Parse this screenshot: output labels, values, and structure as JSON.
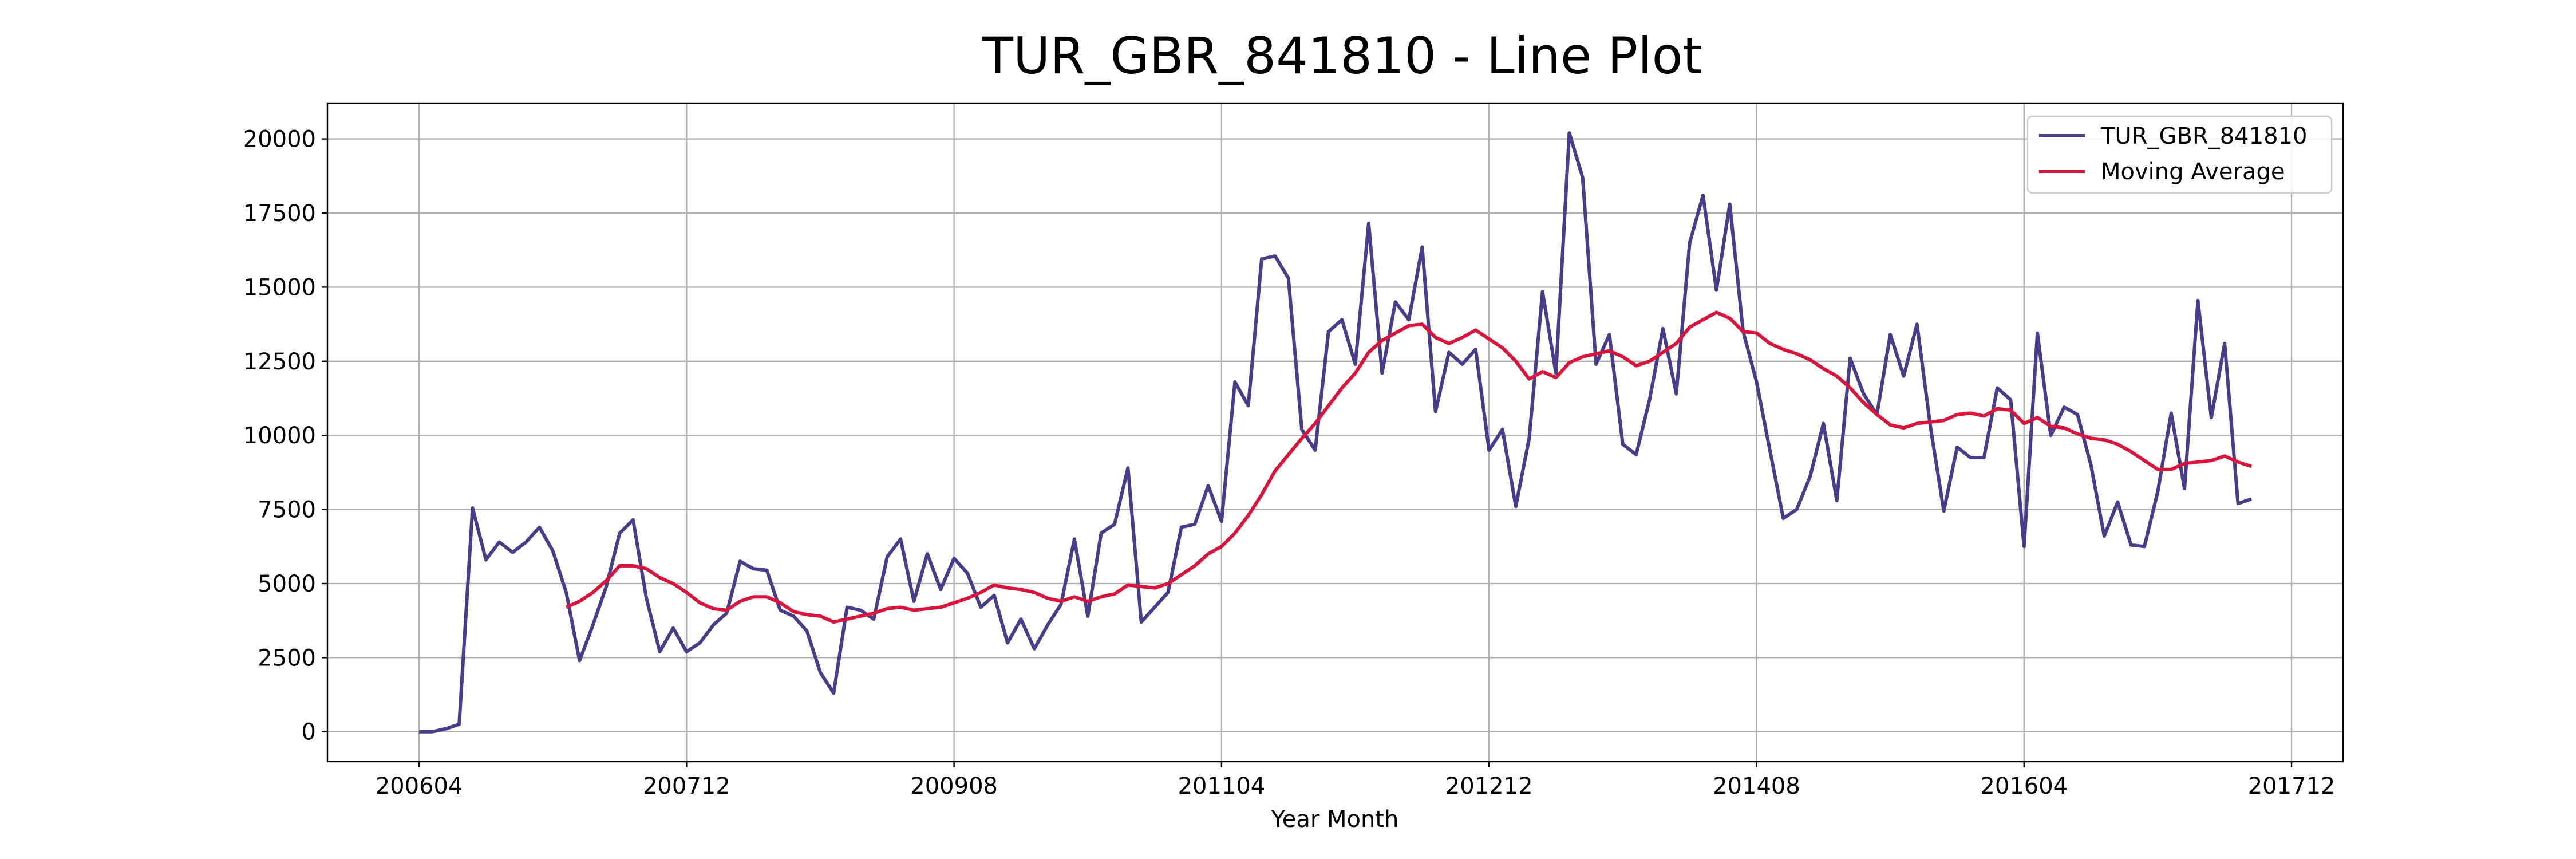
{
  "chart_data": {
    "type": "line",
    "title": "TUR_GBR_841810 - Line Plot",
    "x_label": "Year Month",
    "x": [
      0,
      1,
      2,
      3,
      4,
      5,
      6,
      7,
      8,
      9,
      10,
      11,
      12,
      13,
      14,
      15,
      16,
      17,
      18,
      19,
      20,
      21,
      22,
      23,
      24,
      25,
      26,
      27,
      28,
      29,
      30,
      31,
      32,
      33,
      34,
      35,
      36,
      37,
      38,
      39,
      40,
      41,
      42,
      43,
      44,
      45,
      46,
      47,
      48,
      49,
      50,
      51,
      52,
      53,
      54,
      55,
      56,
      57,
      58,
      59,
      60,
      61,
      62,
      63,
      64,
      65,
      66,
      67,
      68,
      69,
      70,
      71,
      72,
      73,
      74,
      75,
      76,
      77,
      78,
      79,
      80,
      81,
      82,
      83,
      84,
      85,
      86,
      87,
      88,
      89,
      90,
      91,
      92,
      93,
      94,
      95,
      96,
      97,
      98,
      99,
      100,
      101,
      102,
      103,
      104,
      105,
      106,
      107,
      108,
      109,
      110,
      111,
      112,
      113,
      114,
      115,
      116,
      117,
      118,
      119,
      120,
      121,
      122,
      123,
      124,
      125,
      126,
      127,
      128,
      129,
      130,
      131,
      132,
      133,
      134,
      135,
      136,
      137
    ],
    "series": [
      {
        "name": "TUR_GBR_841810",
        "color": "#483d8b",
        "values": [
          0,
          0,
          100,
          250,
          7550,
          5800,
          6400,
          6050,
          6400,
          6900,
          6100,
          4700,
          2400,
          3600,
          4900,
          6700,
          7150,
          4500,
          2700,
          3500,
          2700,
          3000,
          3600,
          4000,
          5750,
          5500,
          5450,
          4100,
          3900,
          3400,
          2000,
          1300,
          4200,
          4100,
          3800,
          5900,
          6500,
          4400,
          6000,
          4800,
          5850,
          5350,
          4200,
          4600,
          3000,
          3800,
          2800,
          3600,
          4300,
          6500,
          3900,
          6700,
          7000,
          8900,
          3700,
          4200,
          4700,
          6900,
          7000,
          8300,
          7100,
          11800,
          11000,
          15950,
          16050,
          15300,
          10200,
          9500,
          13500,
          13900,
          12400,
          17150,
          12100,
          14500,
          13900,
          16350,
          10800,
          12800,
          12400,
          12900,
          9500,
          10200,
          7600,
          9900,
          14850,
          12100,
          20200,
          18700,
          12400,
          13400,
          9700,
          9350,
          11200,
          13600,
          11400,
          16500,
          18100,
          14900,
          17800,
          13500,
          11800,
          9500,
          7200,
          7500,
          8600,
          10400,
          7800,
          12600,
          11400,
          10700,
          13400,
          12000,
          13750,
          10300,
          7450,
          9600,
          9250,
          9250,
          11600,
          11200,
          6250,
          13450,
          10000,
          10950,
          10700,
          9000,
          6600,
          7750,
          6300,
          6250,
          8100,
          10750,
          8200,
          14550,
          10600,
          13100,
          7700,
          7850
        ]
      },
      {
        "name": "Moving Average",
        "color": "#dc143c",
        "values": [
          null,
          null,
          null,
          null,
          null,
          null,
          null,
          null,
          null,
          null,
          null,
          4200,
          4400,
          4700,
          5100,
          5600,
          5600,
          5500,
          5200,
          5000,
          4700,
          4350,
          4150,
          4100,
          4400,
          4550,
          4550,
          4350,
          4050,
          3950,
          3900,
          3700,
          3800,
          3900,
          4000,
          4150,
          4200,
          4100,
          4150,
          4200,
          4350,
          4500,
          4700,
          4950,
          4850,
          4800,
          4700,
          4500,
          4400,
          4550,
          4400,
          4550,
          4650,
          4950,
          4900,
          4850,
          5000,
          5300,
          5600,
          6000,
          6250,
          6700,
          7300,
          8000,
          8800,
          9350,
          9900,
          10400,
          11000,
          11600,
          12100,
          12800,
          13200,
          13450,
          13700,
          13750,
          13300,
          13100,
          13300,
          13550,
          13250,
          12950,
          12500,
          11900,
          12150,
          11950,
          12450,
          12650,
          12750,
          12850,
          12650,
          12350,
          12500,
          12800,
          13100,
          13650,
          13900,
          14150,
          13950,
          13500,
          13450,
          13100,
          12900,
          12750,
          12550,
          12250,
          12000,
          11600,
          11100,
          10700,
          10350,
          10250,
          10400,
          10450,
          10500,
          10700,
          10750,
          10650,
          10900,
          10850,
          10400,
          10600,
          10300,
          10250,
          10050,
          9900,
          9850,
          9700,
          9450,
          9150,
          8850,
          8850,
          9050,
          9100,
          9150,
          9300,
          9100,
          8950
        ]
      }
    ],
    "xlim": [
      -6.85,
      143.85
    ],
    "xticks": [
      {
        "value": 0,
        "label": "200604"
      },
      {
        "value": 20,
        "label": "200712"
      },
      {
        "value": 40,
        "label": "200908"
      },
      {
        "value": 60,
        "label": "201104"
      },
      {
        "value": 80,
        "label": "201212"
      },
      {
        "value": 100,
        "label": "201408"
      },
      {
        "value": 120,
        "label": "201604"
      },
      {
        "value": 140,
        "label": "201712"
      }
    ],
    "ylim": [
      -1010,
      21210
    ],
    "yticks": [
      0,
      2500,
      5000,
      7500,
      10000,
      12500,
      15000,
      17500,
      20000
    ],
    "grid": true,
    "legend": "upper right"
  }
}
